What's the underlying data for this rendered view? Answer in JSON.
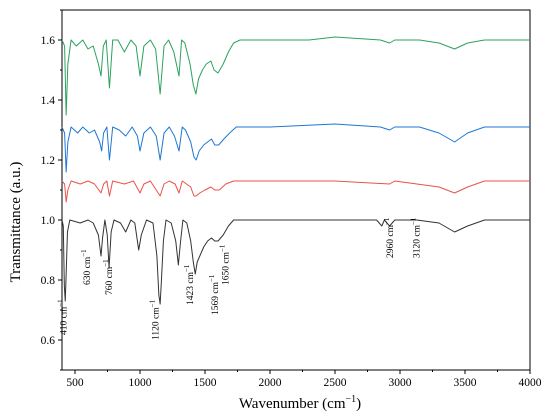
{
  "chart_data": {
    "type": "line",
    "title": "",
    "xlabel": "Wavenumber (cm",
    "xlabel_sup": "−1",
    "xlabel_close": ")",
    "ylabel": "Transmittance (a.u.)",
    "xlim": [
      400,
      4000
    ],
    "ylim": [
      0.5,
      1.7
    ],
    "x_ticks": [
      500,
      1000,
      1500,
      2000,
      2500,
      3000,
      3500,
      4000
    ],
    "y_ticks": [
      0.6,
      0.8,
      1.0,
      1.2,
      1.4,
      1.6
    ],
    "y_tick_labels": [
      "0.6",
      "0.8",
      "1.0",
      "1.2",
      "1.4",
      "1.6"
    ],
    "grid": false,
    "legend": "none",
    "series": [
      {
        "color": "#2ca25f",
        "baseline": 1.6,
        "points": [
          [
            400,
            1.6
          ],
          [
            420,
            1.58
          ],
          [
            432,
            1.35
          ],
          [
            445,
            1.52
          ],
          [
            470,
            1.6
          ],
          [
            510,
            1.58
          ],
          [
            560,
            1.6
          ],
          [
            600,
            1.57
          ],
          [
            640,
            1.58
          ],
          [
            680,
            1.52
          ],
          [
            700,
            1.48
          ],
          [
            718,
            1.58
          ],
          [
            740,
            1.6
          ],
          [
            765,
            1.44
          ],
          [
            790,
            1.6
          ],
          [
            830,
            1.6
          ],
          [
            880,
            1.56
          ],
          [
            930,
            1.6
          ],
          [
            970,
            1.58
          ],
          [
            1000,
            1.48
          ],
          [
            1030,
            1.58
          ],
          [
            1080,
            1.6
          ],
          [
            1120,
            1.57
          ],
          [
            1155,
            1.42
          ],
          [
            1185,
            1.58
          ],
          [
            1220,
            1.6
          ],
          [
            1260,
            1.56
          ],
          [
            1300,
            1.48
          ],
          [
            1320,
            1.6
          ],
          [
            1345,
            1.59
          ],
          [
            1385,
            1.52
          ],
          [
            1410,
            1.45
          ],
          [
            1430,
            1.42
          ],
          [
            1450,
            1.47
          ],
          [
            1480,
            1.5
          ],
          [
            1510,
            1.52
          ],
          [
            1545,
            1.53
          ],
          [
            1570,
            1.5
          ],
          [
            1600,
            1.49
          ],
          [
            1640,
            1.52
          ],
          [
            1680,
            1.56
          ],
          [
            1720,
            1.59
          ],
          [
            1770,
            1.6
          ],
          [
            2000,
            1.6
          ],
          [
            2300,
            1.6
          ],
          [
            2500,
            1.61
          ],
          [
            2850,
            1.6
          ],
          [
            2920,
            1.59
          ],
          [
            2960,
            1.6
          ],
          [
            3150,
            1.6
          ],
          [
            3300,
            1.59
          ],
          [
            3420,
            1.57
          ],
          [
            3520,
            1.59
          ],
          [
            3650,
            1.6
          ],
          [
            4000,
            1.6
          ]
        ]
      },
      {
        "color": "#1f77d4",
        "baseline": 1.31,
        "points": [
          [
            400,
            1.31
          ],
          [
            420,
            1.29
          ],
          [
            432,
            1.16
          ],
          [
            445,
            1.26
          ],
          [
            470,
            1.31
          ],
          [
            520,
            1.29
          ],
          [
            560,
            1.31
          ],
          [
            610,
            1.29
          ],
          [
            650,
            1.3
          ],
          [
            690,
            1.26
          ],
          [
            705,
            1.23
          ],
          [
            720,
            1.29
          ],
          [
            745,
            1.31
          ],
          [
            765,
            1.2
          ],
          [
            790,
            1.31
          ],
          [
            840,
            1.3
          ],
          [
            890,
            1.28
          ],
          [
            940,
            1.31
          ],
          [
            980,
            1.28
          ],
          [
            1000,
            1.23
          ],
          [
            1030,
            1.29
          ],
          [
            1080,
            1.31
          ],
          [
            1125,
            1.28
          ],
          [
            1155,
            1.2
          ],
          [
            1185,
            1.29
          ],
          [
            1225,
            1.31
          ],
          [
            1265,
            1.28
          ],
          [
            1300,
            1.23
          ],
          [
            1325,
            1.31
          ],
          [
            1350,
            1.3
          ],
          [
            1390,
            1.26
          ],
          [
            1415,
            1.21
          ],
          [
            1432,
            1.2
          ],
          [
            1455,
            1.23
          ],
          [
            1490,
            1.25
          ],
          [
            1520,
            1.26
          ],
          [
            1550,
            1.27
          ],
          [
            1575,
            1.25
          ],
          [
            1605,
            1.25
          ],
          [
            1645,
            1.27
          ],
          [
            1690,
            1.29
          ],
          [
            1740,
            1.31
          ],
          [
            2000,
            1.31
          ],
          [
            2500,
            1.32
          ],
          [
            2850,
            1.31
          ],
          [
            2920,
            1.3
          ],
          [
            2960,
            1.31
          ],
          [
            3150,
            1.31
          ],
          [
            3300,
            1.29
          ],
          [
            3420,
            1.26
          ],
          [
            3520,
            1.29
          ],
          [
            3650,
            1.31
          ],
          [
            4000,
            1.31
          ]
        ]
      },
      {
        "color": "#e8534a",
        "baseline": 1.13,
        "points": [
          [
            400,
            1.13
          ],
          [
            420,
            1.12
          ],
          [
            432,
            1.06
          ],
          [
            445,
            1.1
          ],
          [
            470,
            1.13
          ],
          [
            540,
            1.12
          ],
          [
            600,
            1.13
          ],
          [
            650,
            1.12
          ],
          [
            700,
            1.09
          ],
          [
            720,
            1.12
          ],
          [
            745,
            1.13
          ],
          [
            765,
            1.08
          ],
          [
            790,
            1.13
          ],
          [
            880,
            1.12
          ],
          [
            950,
            1.13
          ],
          [
            1000,
            1.09
          ],
          [
            1030,
            1.12
          ],
          [
            1080,
            1.13
          ],
          [
            1155,
            1.08
          ],
          [
            1185,
            1.12
          ],
          [
            1225,
            1.13
          ],
          [
            1270,
            1.12
          ],
          [
            1300,
            1.09
          ],
          [
            1325,
            1.13
          ],
          [
            1390,
            1.11
          ],
          [
            1415,
            1.08
          ],
          [
            1432,
            1.08
          ],
          [
            1460,
            1.09
          ],
          [
            1500,
            1.1
          ],
          [
            1545,
            1.11
          ],
          [
            1575,
            1.1
          ],
          [
            1610,
            1.1
          ],
          [
            1660,
            1.12
          ],
          [
            1720,
            1.13
          ],
          [
            2000,
            1.13
          ],
          [
            2500,
            1.13
          ],
          [
            2920,
            1.12
          ],
          [
            2960,
            1.13
          ],
          [
            3300,
            1.11
          ],
          [
            3420,
            1.09
          ],
          [
            3520,
            1.11
          ],
          [
            3650,
            1.13
          ],
          [
            4000,
            1.13
          ]
        ]
      },
      {
        "color": "#333333",
        "baseline": 1.0,
        "points": [
          [
            400,
            1.0
          ],
          [
            410,
            0.98
          ],
          [
            418,
            0.78
          ],
          [
            425,
            0.73
          ],
          [
            432,
            0.82
          ],
          [
            442,
            0.96
          ],
          [
            460,
            1.0
          ],
          [
            540,
            0.99
          ],
          [
            600,
            1.0
          ],
          [
            640,
            0.99
          ],
          [
            680,
            0.95
          ],
          [
            700,
            0.88
          ],
          [
            712,
            0.94
          ],
          [
            730,
            1.0
          ],
          [
            748,
            0.95
          ],
          [
            762,
            0.84
          ],
          [
            778,
            0.96
          ],
          [
            800,
            1.0
          ],
          [
            850,
            0.99
          ],
          [
            890,
            0.96
          ],
          [
            930,
            1.0
          ],
          [
            960,
            0.99
          ],
          [
            990,
            0.9
          ],
          [
            1010,
            0.95
          ],
          [
            1050,
            1.0
          ],
          [
            1100,
            0.99
          ],
          [
            1130,
            0.88
          ],
          [
            1145,
            0.75
          ],
          [
            1155,
            0.72
          ],
          [
            1165,
            0.8
          ],
          [
            1180,
            0.93
          ],
          [
            1200,
            1.0
          ],
          [
            1240,
            0.99
          ],
          [
            1275,
            0.93
          ],
          [
            1295,
            0.85
          ],
          [
            1310,
            0.92
          ],
          [
            1330,
            1.0
          ],
          [
            1360,
            0.99
          ],
          [
            1390,
            0.93
          ],
          [
            1410,
            0.86
          ],
          [
            1425,
            0.82
          ],
          [
            1440,
            0.86
          ],
          [
            1460,
            0.88
          ],
          [
            1490,
            0.91
          ],
          [
            1520,
            0.93
          ],
          [
            1550,
            0.94
          ],
          [
            1575,
            0.93
          ],
          [
            1600,
            0.93
          ],
          [
            1640,
            0.95
          ],
          [
            1680,
            0.98
          ],
          [
            1720,
            1.0
          ],
          [
            2000,
            1.0
          ],
          [
            2500,
            1.0
          ],
          [
            2820,
            1.0
          ],
          [
            2860,
            0.98
          ],
          [
            2880,
            1.0
          ],
          [
            2920,
            0.98
          ],
          [
            2960,
            1.0
          ],
          [
            3130,
            1.0
          ],
          [
            3300,
            0.99
          ],
          [
            3420,
            0.96
          ],
          [
            3520,
            0.98
          ],
          [
            3650,
            1.0
          ],
          [
            4000,
            1.0
          ]
        ]
      }
    ],
    "annotations": [
      {
        "text": "410 cm",
        "x": 410
      },
      {
        "text": "630 cm",
        "x": 630
      },
      {
        "text": "760 cm",
        "x": 760
      },
      {
        "text": "1120 cm",
        "x": 1120
      },
      {
        "text": "1423 cm",
        "x": 1423
      },
      {
        "text": "1569 cm",
        "x": 1569
      },
      {
        "text": "1650 cm",
        "x": 1650
      },
      {
        "text": "2960 cm",
        "x": 2960
      },
      {
        "text": "3120 cm",
        "x": 3120
      }
    ],
    "annotation_sup": "−1"
  }
}
